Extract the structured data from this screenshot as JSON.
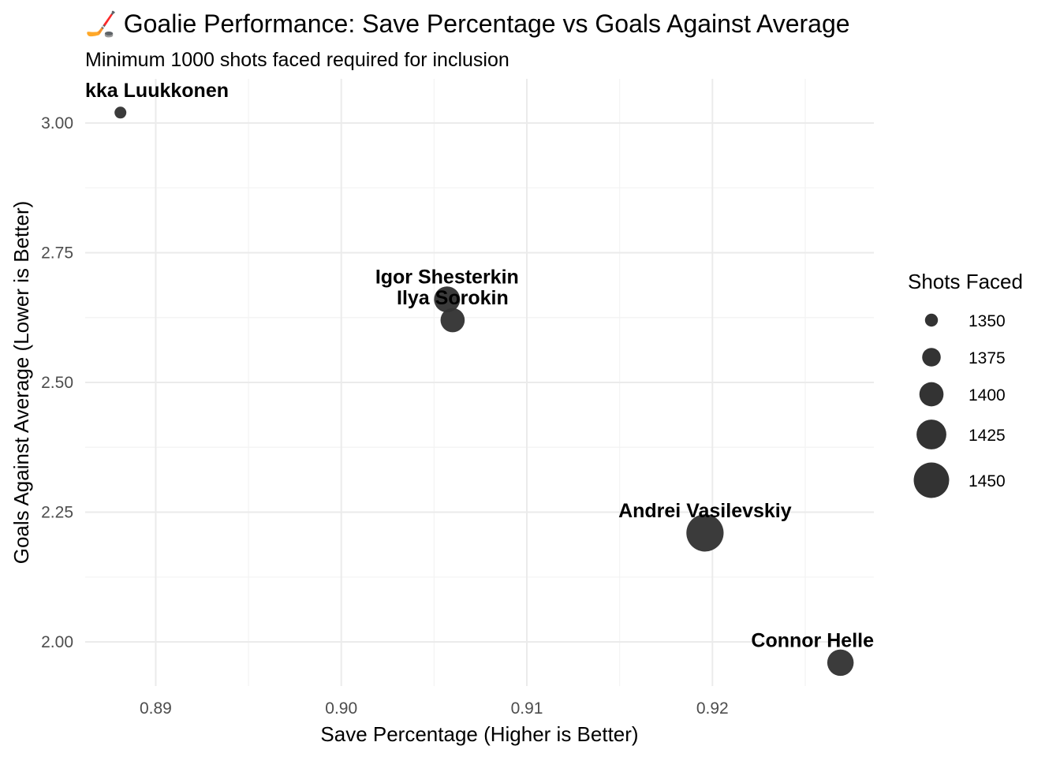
{
  "chart_data": {
    "type": "scatter",
    "title": "🏒 Goalie Performance: Save Percentage vs Goals Against Average",
    "subtitle": "Minimum 1000 shots faced required for inclusion",
    "xlabel": "Save Percentage (Higher is Better)",
    "ylabel": "Goals Against Average (Lower is Better)",
    "xlim": [
      0.8862,
      0.9287
    ],
    "ylim": [
      1.915,
      3.085
    ],
    "x_ticks": [
      0.89,
      0.9,
      0.91,
      0.92
    ],
    "x_tick_labels": [
      "0.89",
      "0.90",
      "0.91",
      "0.92"
    ],
    "y_ticks": [
      2.0,
      2.25,
      2.5,
      2.75,
      3.0
    ],
    "y_tick_labels": [
      "2.00",
      "2.25",
      "2.50",
      "2.75",
      "3.00"
    ],
    "grid": true,
    "marker_color": "#333333",
    "points": [
      {
        "name": "Ukka-Pekka Luukkonen",
        "label": "kka Luukkonen",
        "x": 0.8881,
        "y": 3.02,
        "shots": 1345
      },
      {
        "name": "Igor Shesterkin",
        "label": "Igor Shesterkin",
        "x": 0.9057,
        "y": 2.66,
        "shots": 1408
      },
      {
        "name": "Ilya Sorokin",
        "label": "Ilya Sorokin",
        "x": 0.906,
        "y": 2.62,
        "shots": 1400
      },
      {
        "name": "Andrei Vasilevskiy",
        "label": "Andrei Vasilevskiy",
        "x": 0.9196,
        "y": 2.21,
        "shots": 1458
      },
      {
        "name": "Connor Hellebuyck",
        "label": "Connor Helle",
        "x": 0.9269,
        "y": 1.96,
        "shots": 1410
      }
    ],
    "legend": {
      "title": "Shots Faced",
      "position": "right",
      "entries": [
        {
          "label": "1350",
          "value": 1350
        },
        {
          "label": "1375",
          "value": 1375
        },
        {
          "label": "1400",
          "value": 1400
        },
        {
          "label": "1425",
          "value": 1425
        },
        {
          "label": "1450",
          "value": 1450
        }
      ]
    }
  }
}
